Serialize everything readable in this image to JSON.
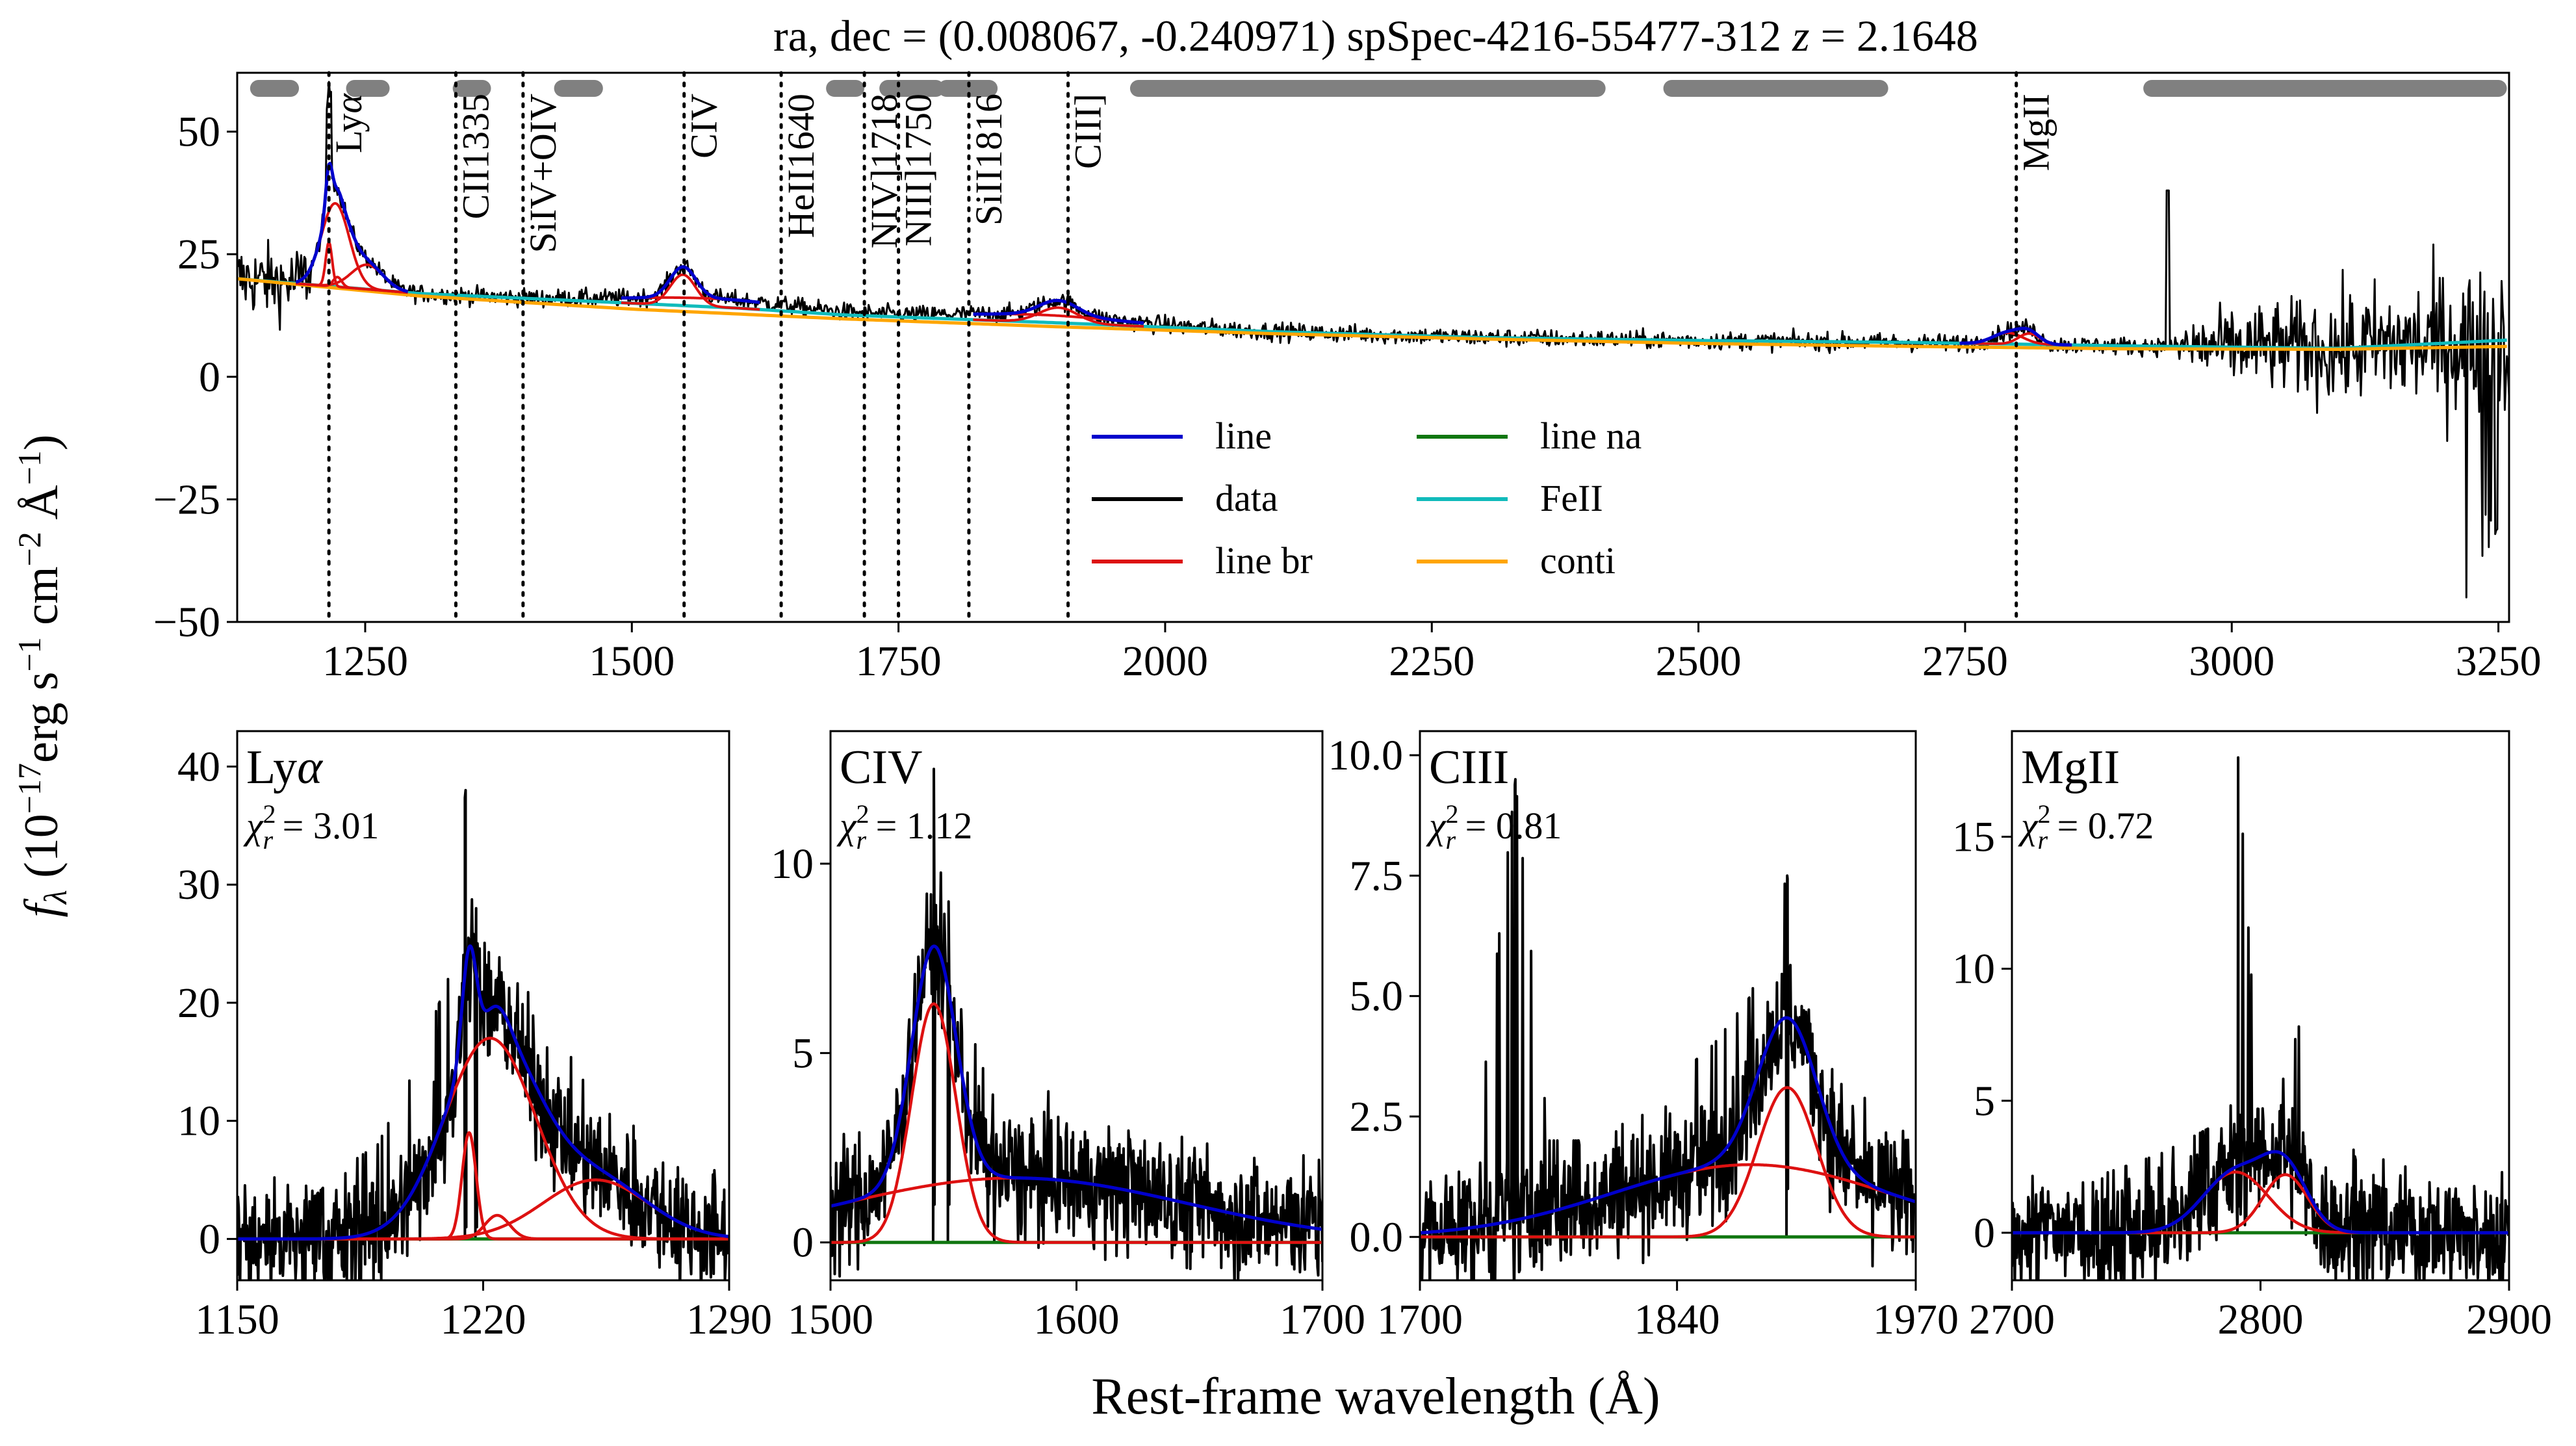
{
  "figure": {
    "title": "ra, dec = (0.008067, -0.240971)   spSpec-4216-55477-312    z = 2.1648",
    "title_parts": {
      "main": "ra, dec = (0.008067, -0.240971)   spSpec-4216-55477-312    ",
      "z_symbol": "z",
      "z_value": " = 2.1648"
    },
    "ylabel": "f_λ (10^-17 erg s^-1 cm^-2 Å^-1)",
    "ylabel_parts": {
      "f": "f",
      "lambda_sub": "λ",
      "open": " (10",
      "exp1": "−17",
      "erg": "erg s",
      "exp2": "−1",
      "cm": " cm",
      "exp3": "−2",
      "ang": " Å",
      "exp4": "−1",
      "close": ")"
    },
    "xlabel": "Rest-frame wavelength (Å)"
  },
  "colors": {
    "line": "#0000cc",
    "data": "#000000",
    "line_br": "#dd1111",
    "line_na": "#117711",
    "FeII": "#11bbbb",
    "conti": "#ffa500",
    "mask_bar": "#808080",
    "markers": "#000000"
  },
  "chart_data": [
    {
      "panel": "main",
      "type": "line",
      "xlim": [
        1130,
        3260
      ],
      "ylim": [
        -50,
        62
      ],
      "xticks": [
        1250,
        1500,
        1750,
        2000,
        2250,
        2500,
        2750,
        3000,
        3250
      ],
      "yticks": [
        -50,
        -25,
        0,
        25,
        50
      ],
      "legend": {
        "placement": "lower-center",
        "entries": [
          {
            "name": "line",
            "color_key": "line"
          },
          {
            "name": "data",
            "color_key": "data"
          },
          {
            "name": "line br",
            "color_key": "line_br"
          },
          {
            "name": "line na",
            "color_key": "line_na"
          },
          {
            "name": "FeII",
            "color_key": "FeII"
          },
          {
            "name": "conti",
            "color_key": "conti"
          }
        ]
      },
      "line_markers": [
        {
          "label": "Lyα",
          "label_main": "Ly",
          "label_greek": "α",
          "x": 1216
        },
        {
          "label": "CII1335",
          "x": 1335
        },
        {
          "label": "SiIV+OIV",
          "x": 1398
        },
        {
          "label": "CIV",
          "x": 1549
        },
        {
          "label": "HeII1640",
          "x": 1640
        },
        {
          "label": "NIV]1718",
          "x": 1718
        },
        {
          "label": "NIII]1750",
          "x": 1750
        },
        {
          "label": "SiII1816",
          "x": 1816
        },
        {
          "label": "CIII]",
          "x": 1909
        },
        {
          "label": "MgII",
          "x": 2798
        }
      ],
      "mask_ranges": [
        [
          1150,
          1180
        ],
        [
          1240,
          1265
        ],
        [
          1340,
          1360
        ],
        [
          1435,
          1465
        ],
        [
          1690,
          1710
        ],
        [
          1740,
          1785
        ],
        [
          1795,
          1835
        ],
        [
          1975,
          2405
        ],
        [
          2475,
          2670
        ],
        [
          2925,
          3250
        ]
      ],
      "continuum": {
        "x": [
          1130,
          1300,
          1500,
          1700,
          1900,
          2100,
          2300,
          2500,
          2700,
          2900,
          3100,
          3260
        ],
        "y": [
          20,
          16.5,
          13.8,
          11.8,
          10.2,
          8.8,
          7.7,
          6.8,
          6.2,
          5.7,
          5.6,
          6.2
        ]
      },
      "FeII": {
        "x": [
          1130,
          1300,
          1450,
          1500,
          1600,
          1700,
          1900,
          2100,
          2300,
          2500,
          2700,
          2900,
          3100,
          3260
        ],
        "y": [
          20,
          17,
          15.5,
          15,
          14,
          12.6,
          11,
          9.2,
          8,
          7.4,
          7,
          6.3,
          5.8,
          7.5
        ]
      },
      "line_components": [
        {
          "name": "Lyα broad 1",
          "type": "broad",
          "x0": 1216,
          "sigma": 3,
          "amp": 9
        },
        {
          "name": "Lyα broad 2",
          "type": "broad",
          "x0": 1222,
          "sigma": 13,
          "amp": 17
        },
        {
          "name": "Lyα broad 3",
          "type": "broad",
          "x0": 1224,
          "sigma": 4,
          "amp": 2
        },
        {
          "name": "Lyα broad 4",
          "type": "broad",
          "x0": 1252,
          "sigma": 15,
          "amp": 5
        },
        {
          "name": "CIV broad 1",
          "type": "broad",
          "x0": 1548,
          "sigma": 12,
          "amp": 6.3
        },
        {
          "name": "CIV broad 2",
          "type": "broad",
          "x0": 1575,
          "sigma": 80,
          "amp": 1.7
        },
        {
          "name": "CIII] broad 1",
          "type": "broad",
          "x0": 1900,
          "sigma": 18,
          "amp": 3.1
        },
        {
          "name": "CIII] broad 2",
          "type": "broad",
          "x0": 1880,
          "sigma": 80,
          "amp": 1.5
        },
        {
          "name": "MgII broad 1",
          "type": "broad",
          "x0": 2790,
          "sigma": 14,
          "amp": 2.3
        },
        {
          "name": "MgII broad 2",
          "type": "broad",
          "x0": 2810,
          "sigma": 10,
          "amp": 2.2
        }
      ]
    },
    {
      "panel": "Lyα",
      "label_main": "Ly",
      "label_greek": "α",
      "chi2_value": "3.01",
      "type": "line",
      "xlim": [
        1150,
        1290
      ],
      "ylim": [
        -3.5,
        43
      ],
      "xticks": [
        1150,
        1220,
        1290
      ],
      "yticks": [
        0,
        10,
        20,
        30,
        40
      ],
      "components": [
        {
          "x0": 1216,
          "sigma": 2,
          "amp": 9
        },
        {
          "x0": 1222,
          "sigma": 13,
          "amp": 17
        },
        {
          "x0": 1224,
          "sigma": 3.5,
          "amp": 2
        },
        {
          "x0": 1252,
          "sigma": 15,
          "amp": 5
        }
      ],
      "data_key_points": {
        "x": [
          1150,
          1170,
          1180,
          1190,
          1200,
          1210,
          1215,
          1218,
          1222,
          1230,
          1240,
          1250,
          1260,
          1270,
          1280,
          1290
        ],
        "y": [
          0,
          3,
          6,
          8,
          14,
          22,
          38,
          28,
          22,
          20,
          14,
          10,
          6,
          3,
          1,
          0
        ]
      }
    },
    {
      "panel": "CIV",
      "label": "CIV",
      "chi2_value": "1.12",
      "type": "line",
      "xlim": [
        1500,
        1700
      ],
      "ylim": [
        -1.0,
        13.5
      ],
      "xticks": [
        1500,
        1600,
        1700
      ],
      "yticks": [
        0,
        5,
        10
      ],
      "components": [
        {
          "x0": 1542,
          "sigma": 9,
          "amp": 6.3
        },
        {
          "x0": 1575,
          "sigma": 70,
          "amp": 1.7
        }
      ],
      "data_key_points": {
        "x": [
          1500,
          1520,
          1530,
          1538,
          1542,
          1548,
          1555,
          1565,
          1580,
          1600,
          1620,
          1640,
          1660,
          1680,
          1700
        ],
        "y": [
          1,
          2,
          4,
          8,
          12.5,
          9,
          6,
          4,
          2.5,
          2,
          2.5,
          2,
          1.5,
          1.5,
          1
        ]
      }
    },
    {
      "panel": "CIII",
      "label": "CIII",
      "chi2_value": "0.81",
      "type": "line",
      "xlim": [
        1700,
        1970
      ],
      "ylim": [
        -0.9,
        10.5
      ],
      "xticks": [
        1700,
        1840,
        1970
      ],
      "yticks": [
        0.0,
        2.5,
        5.0,
        7.5,
        10.0
      ],
      "components": [
        {
          "x0": 1900,
          "sigma": 16,
          "amp": 3.1
        },
        {
          "x0": 1880,
          "sigma": 75,
          "amp": 1.5
        }
      ],
      "data_key_points": {
        "x": [
          1700,
          1730,
          1752,
          1770,
          1800,
          1830,
          1860,
          1880,
          1900,
          1910,
          1930,
          1950,
          1970
        ],
        "y": [
          1,
          1.5,
          9.5,
          2,
          2,
          3,
          4,
          5,
          7.5,
          4,
          3,
          2,
          1
        ]
      }
    },
    {
      "panel": "MgII",
      "label": "MgII",
      "chi2_value": "0.72",
      "type": "line",
      "xlim": [
        2700,
        2900
      ],
      "ylim": [
        -1.8,
        19
      ],
      "xticks": [
        2700,
        2800,
        2900
      ],
      "yticks": [
        0,
        5,
        10,
        15
      ],
      "components": [
        {
          "x0": 2790,
          "sigma": 13,
          "amp": 2.3
        },
        {
          "x0": 2810,
          "sigma": 9,
          "amp": 2.2
        }
      ],
      "data_key_points": {
        "x": [
          2700,
          2730,
          2760,
          2780,
          2791,
          2800,
          2810,
          2822,
          2840,
          2870,
          2900
        ],
        "y": [
          0,
          2,
          3,
          4,
          18,
          4,
          6,
          10,
          2,
          1,
          0
        ]
      }
    }
  ]
}
